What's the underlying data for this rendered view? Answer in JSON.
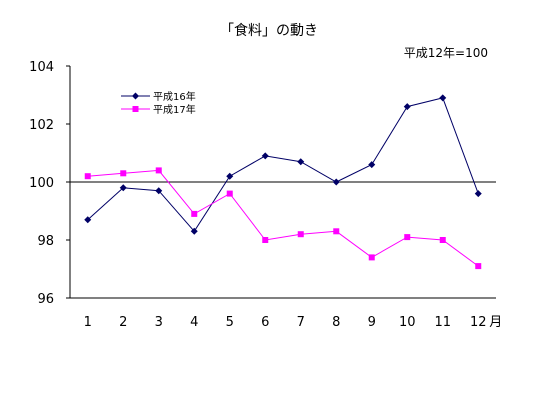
{
  "chart_data": {
    "type": "line",
    "title": "「食料」の動き",
    "note": "平成12年=100",
    "x_unit": "月",
    "categories": [
      "1",
      "2",
      "3",
      "4",
      "5",
      "6",
      "7",
      "8",
      "9",
      "10",
      "11",
      "12"
    ],
    "ylim": [
      96,
      104
    ],
    "yticks": [
      "96",
      "98",
      "100",
      "102",
      "104"
    ],
    "reference_line": 100,
    "grid": false,
    "legend_position": "top-left",
    "series": [
      {
        "name": "平成16年",
        "color": "#000066",
        "marker": "diamond",
        "values": [
          98.7,
          99.8,
          99.7,
          98.3,
          100.2,
          100.9,
          100.7,
          100.0,
          100.6,
          102.6,
          102.9,
          99.6
        ]
      },
      {
        "name": "平成17年",
        "color": "#ff00ff",
        "marker": "square",
        "values": [
          100.2,
          100.3,
          100.4,
          98.9,
          99.6,
          98.0,
          98.2,
          98.3,
          97.4,
          98.1,
          98.0,
          97.1
        ]
      }
    ]
  }
}
